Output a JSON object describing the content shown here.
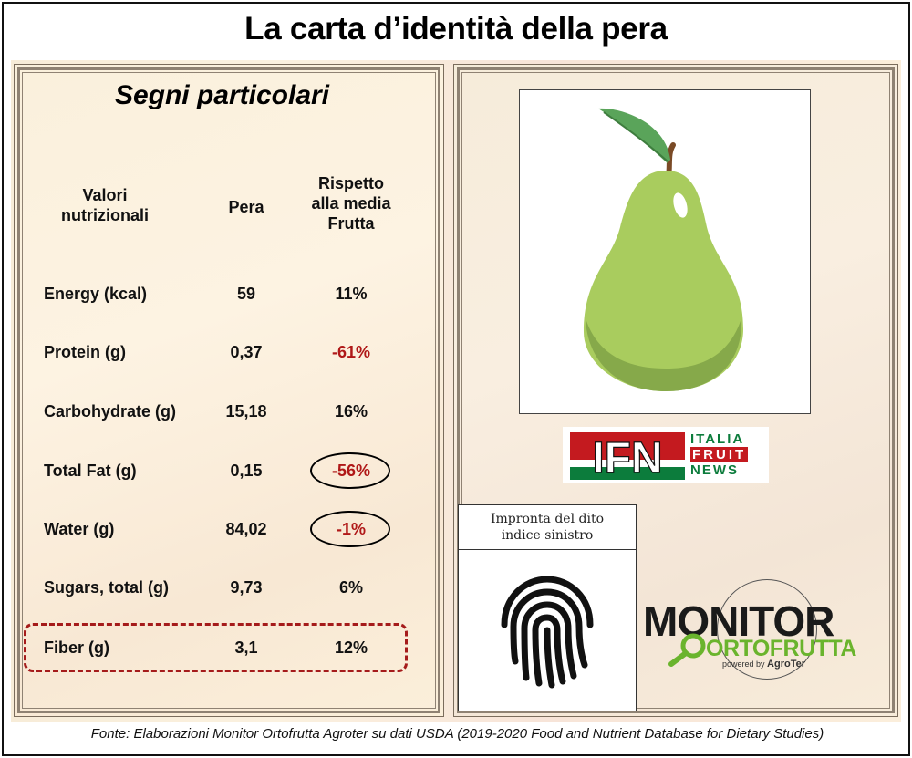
{
  "title": "La carta d’identità della pera",
  "left_card": {
    "subtitle": "Segni particolari",
    "headers": {
      "nutrient": [
        "Valori",
        "nutrizionali"
      ],
      "pear": "Pera",
      "compare": [
        "Rispetto",
        "alla media",
        "Frutta"
      ]
    },
    "rows": [
      {
        "label": "Energy (kcal)",
        "value": "59",
        "percent": "11%"
      },
      {
        "label": "Protein (g)",
        "value": "0,37",
        "percent": "-61%"
      },
      {
        "label": "Carbohydrate (g)",
        "value": "15,18",
        "percent": "16%"
      },
      {
        "label": "Total Fat (g)",
        "value": "0,15",
        "percent": "-56%"
      },
      {
        "label": "Water (g)",
        "value": "84,02",
        "percent": "-1%"
      },
      {
        "label": "Sugars, total (g)",
        "value": "9,73",
        "percent": "6%"
      },
      {
        "label": "Fiber (g)",
        "value": "3,1",
        "percent": "12%"
      }
    ]
  },
  "right_card": {
    "ifn_logo": {
      "mark": "IFN",
      "line1": "ITALIA",
      "line2": "FRUIT",
      "line3": "NEWS"
    },
    "fingerprint": {
      "label": [
        "Impronta del dito",
        "indice sinistro"
      ],
      "icon": "fingerprint-icon"
    },
    "monitor_logo": {
      "word1": "MONITOR",
      "word2": "ORTOFRUTTA",
      "powered_prefix": "powered by",
      "powered_brand": "AgroTer"
    }
  },
  "source": "Fonte: Elaborazioni Monitor Ortofrutta Agroter su dati USDA (2019-2020 Food and Nutrient Database for Dietary Studies)",
  "colors": {
    "negative": "#b01818",
    "pear_body": "#a9cc5e",
    "pear_leaf": "#5aa45a",
    "ifn_red": "#c41a1f",
    "ifn_green": "#0c7c3c",
    "monitor_green": "#6ab42d",
    "fiber_highlight": "#a51b1b"
  }
}
